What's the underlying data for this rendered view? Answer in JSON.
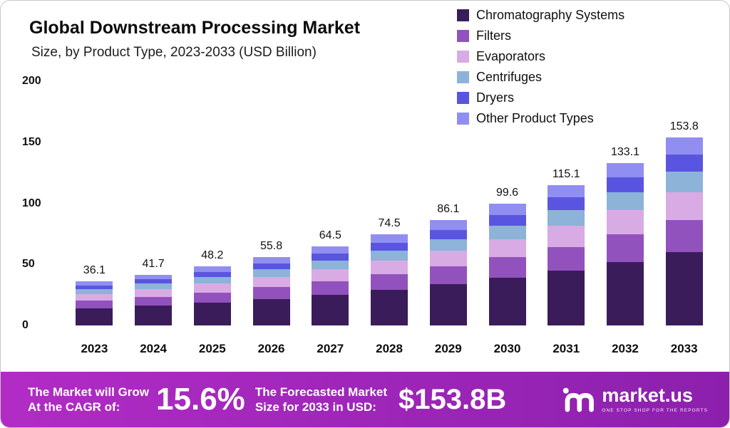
{
  "header": {
    "title": "Global Downstream Processing Market",
    "subtitle": "Size, by Product Type, 2023-2033 (USD Billion)"
  },
  "chart_data": {
    "type": "bar",
    "stacked": true,
    "title": "Global Downstream Processing Market Size, by Product Type, 2023-2033 (USD Billion)",
    "categories": [
      "2023",
      "2024",
      "2025",
      "2026",
      "2027",
      "2028",
      "2029",
      "2030",
      "2031",
      "2032",
      "2033"
    ],
    "totals": [
      36.1,
      41.7,
      48.2,
      55.8,
      64.5,
      74.5,
      86.1,
      99.6,
      115.1,
      133.1,
      153.8
    ],
    "series": [
      {
        "name": "Chromatography Systems",
        "color": "#3a1c5a",
        "values": [
          14.1,
          16.3,
          18.8,
          21.8,
          25.2,
          29.1,
          33.6,
          38.8,
          44.9,
          51.9,
          60.0
        ]
      },
      {
        "name": "Filters",
        "color": "#9252bd",
        "values": [
          6.1,
          7.1,
          8.2,
          9.5,
          11.0,
          12.7,
          14.6,
          16.9,
          19.6,
          22.6,
          26.1
        ]
      },
      {
        "name": "Evaporators",
        "color": "#d9abe4",
        "values": [
          5.4,
          6.3,
          7.2,
          8.4,
          9.7,
          11.2,
          12.9,
          14.9,
          17.3,
          20.0,
          23.1
        ]
      },
      {
        "name": "Centrifuges",
        "color": "#8db3d8",
        "values": [
          4.0,
          4.6,
          5.3,
          6.1,
          7.1,
          8.2,
          9.5,
          11.0,
          12.7,
          14.6,
          16.9
        ]
      },
      {
        "name": "Dryers",
        "color": "#5a55e0",
        "values": [
          3.2,
          3.8,
          4.3,
          5.0,
          5.8,
          6.7,
          7.7,
          9.0,
          10.4,
          12.0,
          13.8
        ]
      },
      {
        "name": "Other Product Types",
        "color": "#918ef2",
        "values": [
          3.2,
          3.8,
          4.3,
          5.0,
          5.8,
          6.7,
          7.7,
          9.0,
          10.4,
          12.0,
          13.8
        ]
      }
    ],
    "ylim": [
      0,
      200
    ],
    "yticks": [
      0,
      50,
      100,
      150,
      200
    ],
    "grid": false,
    "legend_position": "top-right"
  },
  "footer": {
    "cagr": {
      "line1": "The Market will Grow",
      "line2": "At the CAGR of:",
      "value": "15.6%"
    },
    "forecast": {
      "line1": "The Forecasted Market",
      "line2": "Size for 2033 in USD:",
      "value": "$153.8B"
    },
    "brand": {
      "name": "market.us",
      "tagline": "ONE STOP SHOP FOR THE REPORTS"
    },
    "colors": {
      "banner_from": "#b12cc5",
      "banner_to": "#8c20ad"
    }
  }
}
